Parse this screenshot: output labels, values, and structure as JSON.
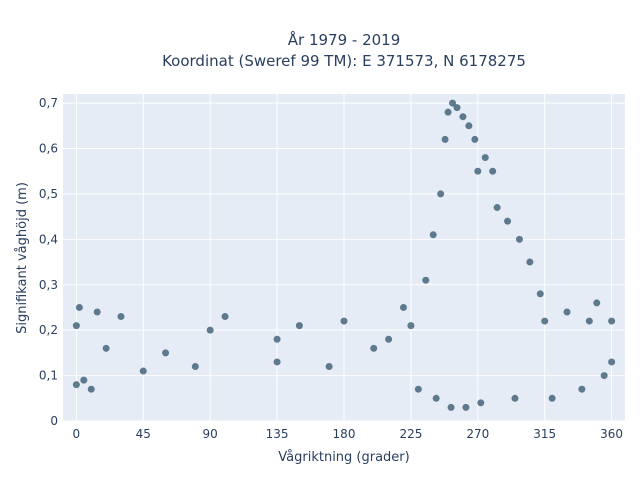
{
  "chart_data": {
    "type": "scatter",
    "title_lines": [
      "År 1979 - 2019",
      "Koordinat (Sweref 99 TM): E 371573, N 6178275"
    ],
    "xlabel": "Vågriktning (grader)",
    "ylabel": "Signifikant våghöjd (m)",
    "xlim": [
      -9,
      369
    ],
    "ylim": [
      0,
      0.72
    ],
    "x_ticks": [
      0,
      45,
      90,
      135,
      180,
      225,
      270,
      315,
      360
    ],
    "x_tick_labels": [
      "0",
      "45",
      "90",
      "135",
      "180",
      "225",
      "270",
      "315",
      "360"
    ],
    "y_ticks": [
      0,
      0.1,
      0.2,
      0.3,
      0.4,
      0.5,
      0.6,
      0.7
    ],
    "y_tick_labels": [
      "0",
      "0,1",
      "0,2",
      "0,3",
      "0,4",
      "0,5",
      "0,6",
      "0,7"
    ],
    "grid": true,
    "legend": "none",
    "series": [
      {
        "color": "#2f5369",
        "points": [
          [
            0,
            0.08
          ],
          [
            0,
            0.21
          ],
          [
            2,
            0.25
          ],
          [
            5,
            0.09
          ],
          [
            10,
            0.07
          ],
          [
            14,
            0.24
          ],
          [
            20,
            0.16
          ],
          [
            30,
            0.23
          ],
          [
            45,
            0.11
          ],
          [
            60,
            0.15
          ],
          [
            80,
            0.12
          ],
          [
            90,
            0.2
          ],
          [
            100,
            0.23
          ],
          [
            135,
            0.18
          ],
          [
            135,
            0.13
          ],
          [
            150,
            0.21
          ],
          [
            170,
            0.12
          ],
          [
            180,
            0.22
          ],
          [
            200,
            0.16
          ],
          [
            210,
            0.18
          ],
          [
            220,
            0.25
          ],
          [
            225,
            0.21
          ],
          [
            230,
            0.07
          ],
          [
            235,
            0.31
          ],
          [
            240,
            0.41
          ],
          [
            242,
            0.05
          ],
          [
            245,
            0.5
          ],
          [
            248,
            0.62
          ],
          [
            250,
            0.68
          ],
          [
            252,
            0.03
          ],
          [
            253,
            0.7
          ],
          [
            256,
            0.69
          ],
          [
            260,
            0.67
          ],
          [
            262,
            0.03
          ],
          [
            264,
            0.65
          ],
          [
            268,
            0.62
          ],
          [
            270,
            0.55
          ],
          [
            272,
            0.04
          ],
          [
            275,
            0.58
          ],
          [
            280,
            0.55
          ],
          [
            283,
            0.47
          ],
          [
            290,
            0.44
          ],
          [
            295,
            0.05
          ],
          [
            298,
            0.4
          ],
          [
            305,
            0.35
          ],
          [
            312,
            0.28
          ],
          [
            315,
            0.22
          ],
          [
            320,
            0.05
          ],
          [
            330,
            0.24
          ],
          [
            340,
            0.07
          ],
          [
            345,
            0.22
          ],
          [
            350,
            0.26
          ],
          [
            355,
            0.1
          ],
          [
            360,
            0.13
          ],
          [
            360,
            0.22
          ]
        ]
      }
    ]
  }
}
